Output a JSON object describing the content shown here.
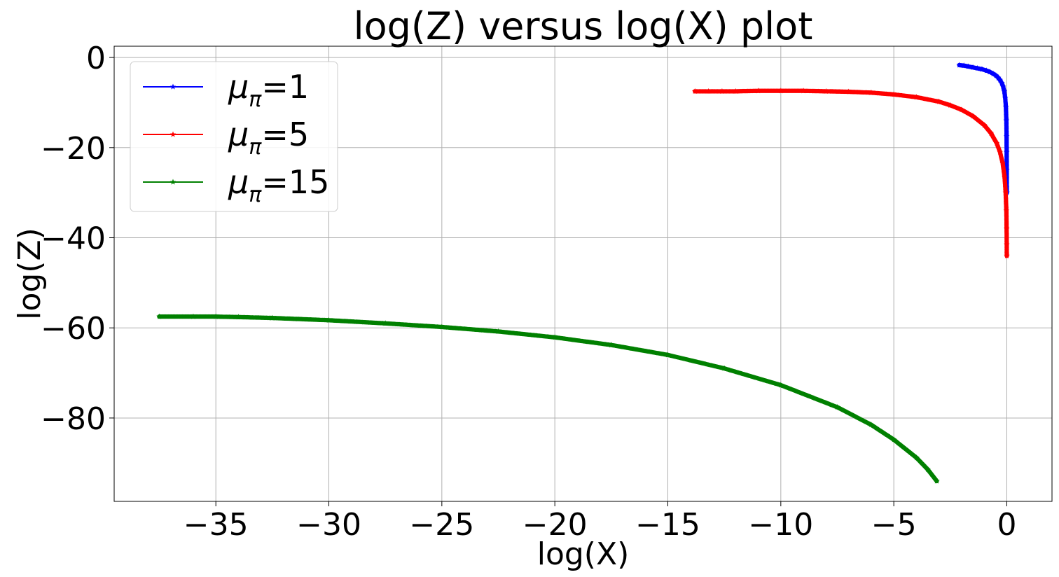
{
  "chart_data": {
    "type": "line",
    "title": "log(Z) versus log(X) plot",
    "xlabel": "log(X)",
    "ylabel": "log(Z)",
    "xlim": [
      -39.5,
      2.0
    ],
    "ylim": [
      -98.5,
      2.5
    ],
    "xticks": [
      -35,
      -30,
      -25,
      -20,
      -15,
      -10,
      -5,
      0
    ],
    "xtick_labels": [
      "−35",
      "−30",
      "−25",
      "−20",
      "−15",
      "−10",
      "−5",
      "0"
    ],
    "yticks": [
      0,
      -20,
      -40,
      -60,
      -80
    ],
    "ytick_labels": [
      "0",
      "−20",
      "−40",
      "−60",
      "−80"
    ],
    "grid": true,
    "legend_position": "upper-left",
    "marker": "star",
    "series": [
      {
        "name": "μπ=1",
        "name_base": "μ",
        "name_sub": "π",
        "name_value": "=1",
        "color": "#0000ff",
        "x": [
          -2.1,
          -1.9,
          -1.7,
          -1.5,
          -1.3,
          -1.1,
          -0.9,
          -0.75,
          -0.6,
          -0.48,
          -0.38,
          -0.3,
          -0.22,
          -0.16,
          -0.11,
          -0.07,
          -0.04,
          -0.02,
          -0.01,
          -0.005,
          -0.002,
          0
        ],
        "y": [
          -1.7,
          -1.8,
          -2.0,
          -2.2,
          -2.4,
          -2.6,
          -2.9,
          -3.2,
          -3.6,
          -4.0,
          -4.5,
          -5.0,
          -5.7,
          -6.5,
          -7.5,
          -9.0,
          -11.0,
          -14.0,
          -17.5,
          -21.0,
          -25.0,
          -30.0
        ]
      },
      {
        "name": "μπ=5",
        "name_base": "μ",
        "name_sub": "π",
        "name_value": "=5",
        "color": "#ff0000",
        "x": [
          -13.8,
          -13.2,
          -12.6,
          -12.0,
          -11.0,
          -10.0,
          -9.0,
          -8.0,
          -7.0,
          -6.0,
          -5.0,
          -4.0,
          -3.0,
          -2.5,
          -2.0,
          -1.5,
          -1.0,
          -0.7,
          -0.45,
          -0.3,
          -0.18,
          -0.1,
          -0.05,
          -0.02,
          -0.008,
          -0.003,
          0
        ],
        "y": [
          -7.5,
          -7.5,
          -7.5,
          -7.5,
          -7.4,
          -7.4,
          -7.4,
          -7.5,
          -7.6,
          -7.8,
          -8.2,
          -8.8,
          -9.8,
          -10.6,
          -11.6,
          -13.0,
          -15.0,
          -16.8,
          -19.0,
          -21.0,
          -23.5,
          -26.5,
          -30.0,
          -34.0,
          -38.0,
          -41.5,
          -44.0
        ]
      },
      {
        "name": "μπ=15",
        "name_base": "μ",
        "name_sub": "π",
        "name_value": "=15",
        "color": "#008000",
        "x": [
          -37.5,
          -36.0,
          -35.0,
          -34.0,
          -32.5,
          -30.0,
          -27.5,
          -25.0,
          -22.5,
          -20.0,
          -17.5,
          -15.0,
          -12.5,
          -10.0,
          -7.5,
          -6.0,
          -5.0,
          -4.0,
          -3.5,
          -3.1
        ],
        "y": [
          -57.5,
          -57.5,
          -57.5,
          -57.6,
          -57.8,
          -58.3,
          -59.0,
          -59.8,
          -60.8,
          -62.1,
          -63.8,
          -66.0,
          -69.0,
          -72.7,
          -77.6,
          -81.5,
          -84.8,
          -88.8,
          -91.4,
          -94.0
        ]
      }
    ]
  }
}
